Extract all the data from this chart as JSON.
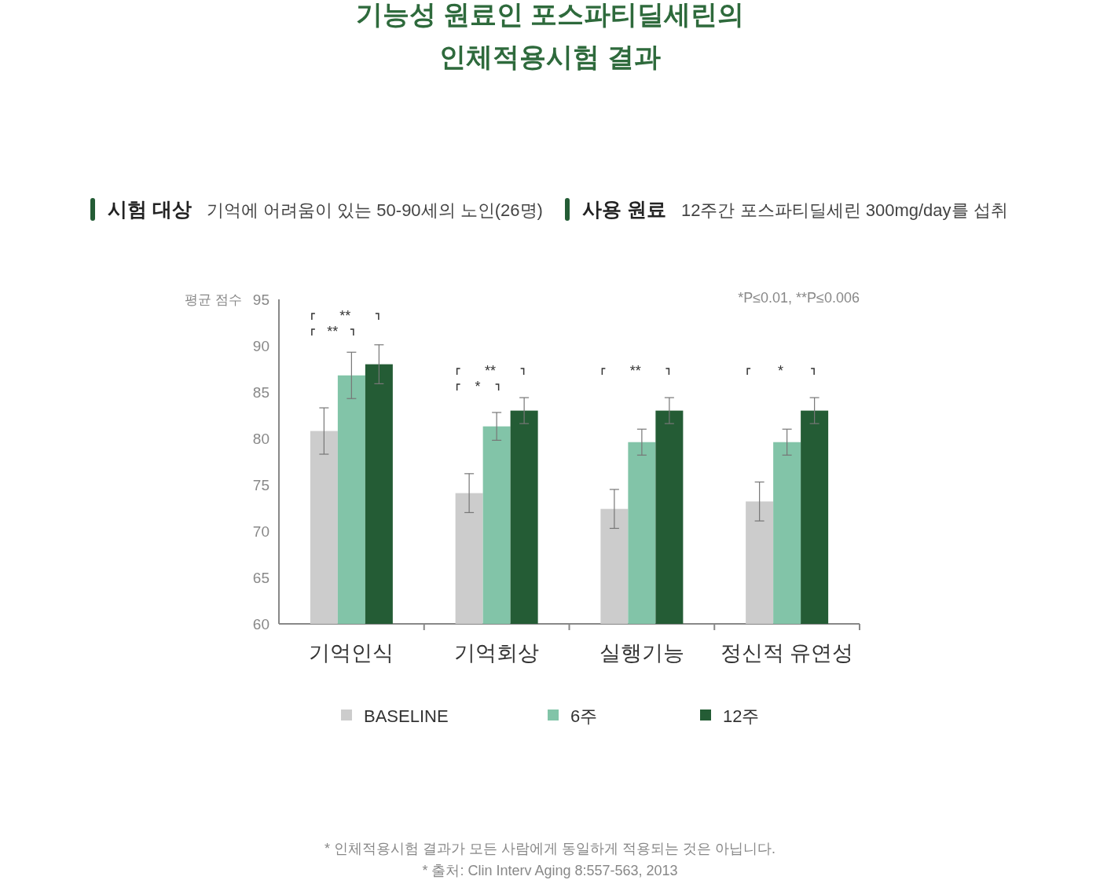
{
  "chart_data": {
    "type": "bar",
    "title": "기능성 원료인 포스파티딜세린의\n인체적용시험 결과",
    "ylabel": "평균 점수",
    "categories": [
      "기억인식",
      "기억회상",
      "실행기능",
      "정신적 유연성"
    ],
    "series": [
      {
        "name": "BASELINE",
        "color": "#cccccc",
        "values": [
          80.8,
          74.1,
          72.4,
          73.2
        ],
        "errors": [
          2.5,
          2.1,
          2.1,
          2.1
        ]
      },
      {
        "name": "6주",
        "color": "#82c4a8",
        "values": [
          86.8,
          81.3,
          79.6,
          79.6
        ],
        "errors": [
          2.5,
          1.5,
          1.4,
          1.4
        ]
      },
      {
        "name": "12주",
        "color": "#245c35",
        "values": [
          88.0,
          83.0,
          83.0,
          83.0
        ],
        "errors": [
          2.1,
          1.4,
          1.4,
          1.4
        ]
      }
    ],
    "ylim": [
      60,
      95
    ],
    "yticks": [
      60,
      65,
      70,
      75,
      80,
      85,
      90,
      95
    ],
    "grid": false,
    "legend": "bottom",
    "annotations": [
      "시험 대상",
      "기억에 어려움이 있는 50-90세의 노인(26명)",
      "사용 원료",
      "12주간 포스파티딜세린 300mg/day를 섭취",
      "*P≤0.01, **P≤0.006",
      "* 인체적용시험 결과가 모든 사람에게 동일하게 적용되는 것은 아닙니다.",
      "* 출처: Clin Interv Aging 8:557-563, 2013",
      "**",
      "**",
      "**",
      "*",
      "**",
      "*"
    ]
  }
}
